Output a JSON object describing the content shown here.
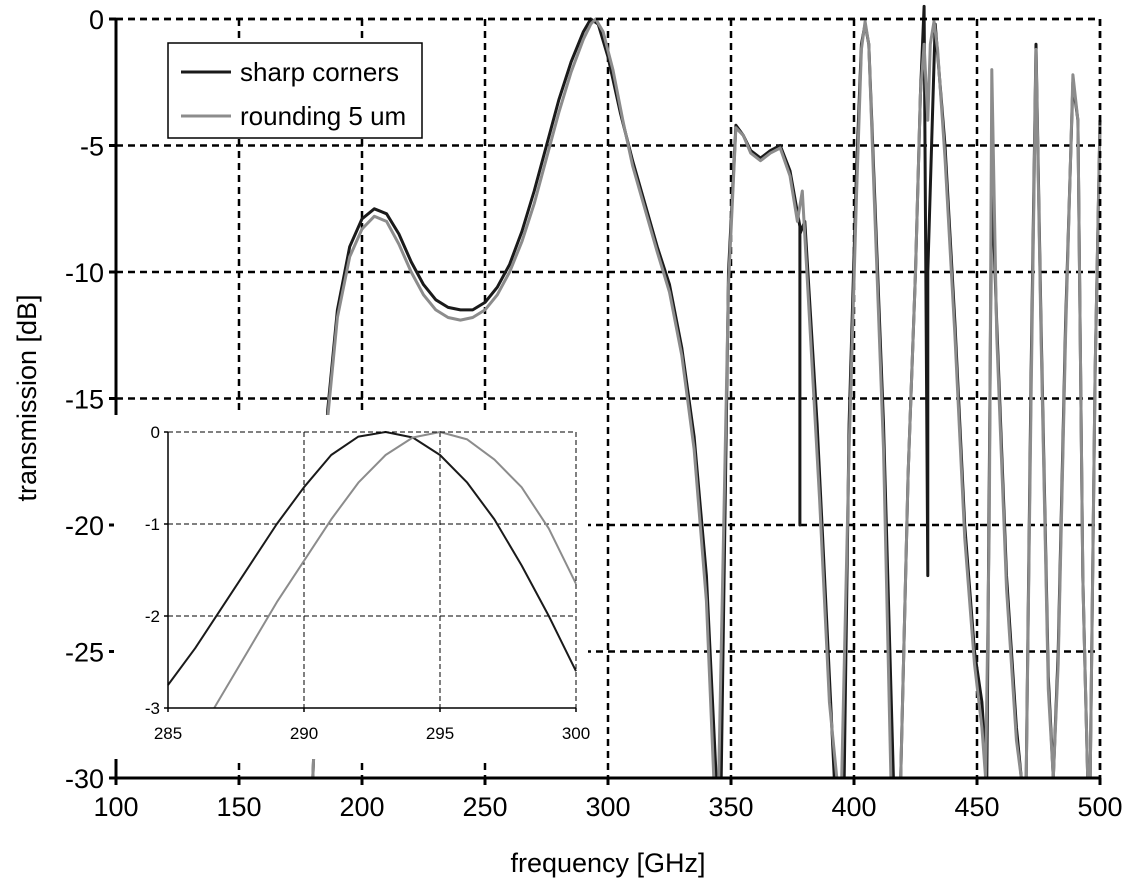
{
  "chart_data": [
    {
      "type": "line",
      "xlabel": "frequency [GHz]",
      "ylabel": "transmission [dB]",
      "xlim": [
        100,
        500
      ],
      "ylim": [
        -30,
        0
      ],
      "x_ticks": [
        100,
        150,
        200,
        250,
        300,
        350,
        400,
        450,
        500
      ],
      "y_ticks": [
        0,
        -5,
        -10,
        -15,
        -20,
        -25,
        -30
      ],
      "grid": true,
      "legend_position": "top-left",
      "series": [
        {
          "name": "sharp corners",
          "color": "#1a1a1a",
          "points": [
            [
              180,
              -30
            ],
            [
              186,
              -15.5
            ],
            [
              190,
              -11.5
            ],
            [
              195,
              -9
            ],
            [
              200,
              -7.9
            ],
            [
              205,
              -7.5
            ],
            [
              210,
              -7.7
            ],
            [
              215,
              -8.5
            ],
            [
              220,
              -9.6
            ],
            [
              225,
              -10.5
            ],
            [
              230,
              -11.1
            ],
            [
              235,
              -11.4
            ],
            [
              240,
              -11.5
            ],
            [
              245,
              -11.5
            ],
            [
              250,
              -11.2
            ],
            [
              255,
              -10.6
            ],
            [
              260,
              -9.7
            ],
            [
              265,
              -8.4
            ],
            [
              270,
              -6.8
            ],
            [
              275,
              -5
            ],
            [
              280,
              -3.2
            ],
            [
              285,
              -1.7
            ],
            [
              290,
              -0.5
            ],
            [
              293,
              0
            ],
            [
              296,
              -0.2
            ],
            [
              300,
              -1.5
            ],
            [
              305,
              -3.7
            ],
            [
              310,
              -5.6
            ],
            [
              315,
              -7.3
            ],
            [
              320,
              -9
            ],
            [
              325,
              -10.5
            ],
            [
              330,
              -13
            ],
            [
              335,
              -16.5
            ],
            [
              340,
              -22
            ],
            [
              344,
              -30
            ],
            [
              346,
              -30
            ],
            [
              349,
              -10
            ],
            [
              352,
              -4.2
            ],
            [
              355,
              -4.6
            ],
            [
              358,
              -5.2
            ],
            [
              362,
              -5.5
            ],
            [
              366,
              -5.2
            ],
            [
              370,
              -5
            ],
            [
              374,
              -6
            ],
            [
              378,
              -8.2
            ],
            [
              378,
              -20
            ],
            [
              378,
              -8.5
            ],
            [
              380,
              -8
            ],
            [
              385,
              -16
            ],
            [
              390,
              -26
            ],
            [
              392,
              -30
            ],
            [
              396,
              -30
            ],
            [
              398,
              -16
            ],
            [
              401,
              -6
            ],
            [
              403,
              -1
            ],
            [
              404.5,
              -0.2
            ],
            [
              406,
              -1
            ],
            [
              408,
              -6
            ],
            [
              412,
              -16
            ],
            [
              416,
              -30
            ],
            [
              419,
              -30
            ],
            [
              422,
              -18
            ],
            [
              425,
              -10
            ],
            [
              427,
              -3
            ],
            [
              428.5,
              0.5
            ],
            [
              430,
              -22
            ],
            [
              430,
              -10
            ],
            [
              433,
              -0.2
            ],
            [
              437,
              -5
            ],
            [
              441,
              -12
            ],
            [
              445,
              -20
            ],
            [
              449,
              -25
            ],
            [
              452,
              -27
            ],
            [
              454,
              -30
            ],
            [
              456,
              -6
            ],
            [
              458,
              -12
            ],
            [
              462,
              -22
            ],
            [
              466,
              -28
            ],
            [
              468,
              -30
            ],
            [
              470,
              -30
            ],
            [
              472,
              -14
            ],
            [
              474,
              -1
            ],
            [
              476,
              -12
            ],
            [
              479,
              -26
            ],
            [
              481,
              -30
            ],
            [
              483,
              -25
            ],
            [
              486,
              -12
            ],
            [
              489,
              -2.5
            ],
            [
              491,
              -4
            ],
            [
              493,
              -22
            ],
            [
              494,
              -26
            ],
            [
              495,
              -30
            ],
            [
              496,
              -30
            ],
            [
              498,
              -14
            ],
            [
              500,
              -4
            ]
          ]
        },
        {
          "name": "rounding 5 um",
          "color": "#8c8c8c",
          "points": [
            [
              180,
              -30
            ],
            [
              186,
              -15.8
            ],
            [
              190,
              -11.8
            ],
            [
              195,
              -9.4
            ],
            [
              200,
              -8.3
            ],
            [
              205,
              -7.8
            ],
            [
              210,
              -8
            ],
            [
              215,
              -8.9
            ],
            [
              220,
              -10
            ],
            [
              225,
              -10.9
            ],
            [
              230,
              -11.5
            ],
            [
              235,
              -11.8
            ],
            [
              240,
              -11.9
            ],
            [
              245,
              -11.8
            ],
            [
              250,
              -11.5
            ],
            [
              255,
              -10.9
            ],
            [
              260,
              -10
            ],
            [
              265,
              -8.8
            ],
            [
              270,
              -7.3
            ],
            [
              275,
              -5.5
            ],
            [
              280,
              -3.7
            ],
            [
              285,
              -2.1
            ],
            [
              290,
              -0.8
            ],
            [
              293,
              -0.2
            ],
            [
              295,
              0
            ],
            [
              298,
              -0.5
            ],
            [
              302,
              -2
            ],
            [
              306,
              -4
            ],
            [
              310,
              -5.8
            ],
            [
              315,
              -7.5
            ],
            [
              320,
              -9.2
            ],
            [
              325,
              -10.8
            ],
            [
              330,
              -13.3
            ],
            [
              335,
              -17
            ],
            [
              340,
              -23
            ],
            [
              343,
              -30
            ],
            [
              345,
              -30
            ],
            [
              349,
              -10.5
            ],
            [
              352,
              -4.3
            ],
            [
              355,
              -4.6
            ],
            [
              358,
              -5.3
            ],
            [
              362,
              -5.6
            ],
            [
              366,
              -5.3
            ],
            [
              370,
              -5.1
            ],
            [
              374,
              -6.2
            ],
            [
              377,
              -8
            ],
            [
              379,
              -6.8
            ],
            [
              382,
              -12
            ],
            [
              386,
              -19
            ],
            [
              390,
              -27
            ],
            [
              393,
              -30
            ],
            [
              395,
              -30
            ],
            [
              398,
              -17
            ],
            [
              401,
              -7
            ],
            [
              403,
              -1.2
            ],
            [
              404.5,
              -0.1
            ],
            [
              406,
              -1
            ],
            [
              408,
              -6.5
            ],
            [
              412,
              -17
            ],
            [
              415,
              -30
            ],
            [
              419,
              -30
            ],
            [
              422,
              -18
            ],
            [
              425,
              -10
            ],
            [
              427,
              -3
            ],
            [
              428.5,
              -1
            ],
            [
              430,
              -4
            ],
            [
              431,
              -1
            ],
            [
              432.5,
              -0.1
            ],
            [
              434,
              -1.2
            ],
            [
              437,
              -5.5
            ],
            [
              441,
              -12.5
            ],
            [
              445,
              -20.5
            ],
            [
              449,
              -25.5
            ],
            [
              452,
              -28
            ],
            [
              453.5,
              -30
            ],
            [
              455,
              -20
            ],
            [
              456,
              -2
            ],
            [
              458,
              -12.5
            ],
            [
              462,
              -22.5
            ],
            [
              466,
              -28.5
            ],
            [
              468,
              -30
            ],
            [
              470,
              -30
            ],
            [
              472,
              -15
            ],
            [
              474,
              -1.2
            ],
            [
              476,
              -12.5
            ],
            [
              479,
              -26.5
            ],
            [
              481,
              -30
            ],
            [
              483,
              -25.5
            ],
            [
              486,
              -12.5
            ],
            [
              489,
              -2.2
            ],
            [
              491,
              -4
            ],
            [
              493,
              -22
            ],
            [
              494,
              -26
            ],
            [
              495,
              -30
            ],
            [
              496,
              -30
            ],
            [
              498,
              -14
            ],
            [
              500,
              -4.2
            ]
          ]
        }
      ]
    },
    {
      "type": "line",
      "xlabel": "",
      "ylabel": "",
      "xlim": [
        285,
        300
      ],
      "ylim": [
        -3,
        0
      ],
      "x_ticks": [
        285,
        290,
        295,
        300
      ],
      "y_ticks": [
        0,
        -1,
        -2,
        -3
      ],
      "grid": true,
      "series": [
        {
          "color": "#1a1a1a",
          "points": [
            [
              285,
              -2.75
            ],
            [
              286,
              -2.35
            ],
            [
              287,
              -1.9
            ],
            [
              288,
              -1.45
            ],
            [
              289,
              -1.0
            ],
            [
              290,
              -0.6
            ],
            [
              291,
              -0.25
            ],
            [
              292,
              -0.05
            ],
            [
              293,
              0
            ],
            [
              294,
              -0.06
            ],
            [
              295,
              -0.25
            ],
            [
              296,
              -0.55
            ],
            [
              297,
              -0.95
            ],
            [
              298,
              -1.45
            ],
            [
              299,
              -2.0
            ],
            [
              300,
              -2.6
            ]
          ]
        },
        {
          "color": "#8c8c8c",
          "points": [
            [
              286.7,
              -3
            ],
            [
              288,
              -2.35
            ],
            [
              289,
              -1.85
            ],
            [
              290,
              -1.4
            ],
            [
              291,
              -0.95
            ],
            [
              292,
              -0.55
            ],
            [
              293,
              -0.25
            ],
            [
              294,
              -0.06
            ],
            [
              295,
              0
            ],
            [
              296,
              -0.08
            ],
            [
              297,
              -0.3
            ],
            [
              298,
              -0.6
            ],
            [
              299,
              -1.05
            ],
            [
              300,
              -1.65
            ]
          ]
        }
      ]
    }
  ]
}
